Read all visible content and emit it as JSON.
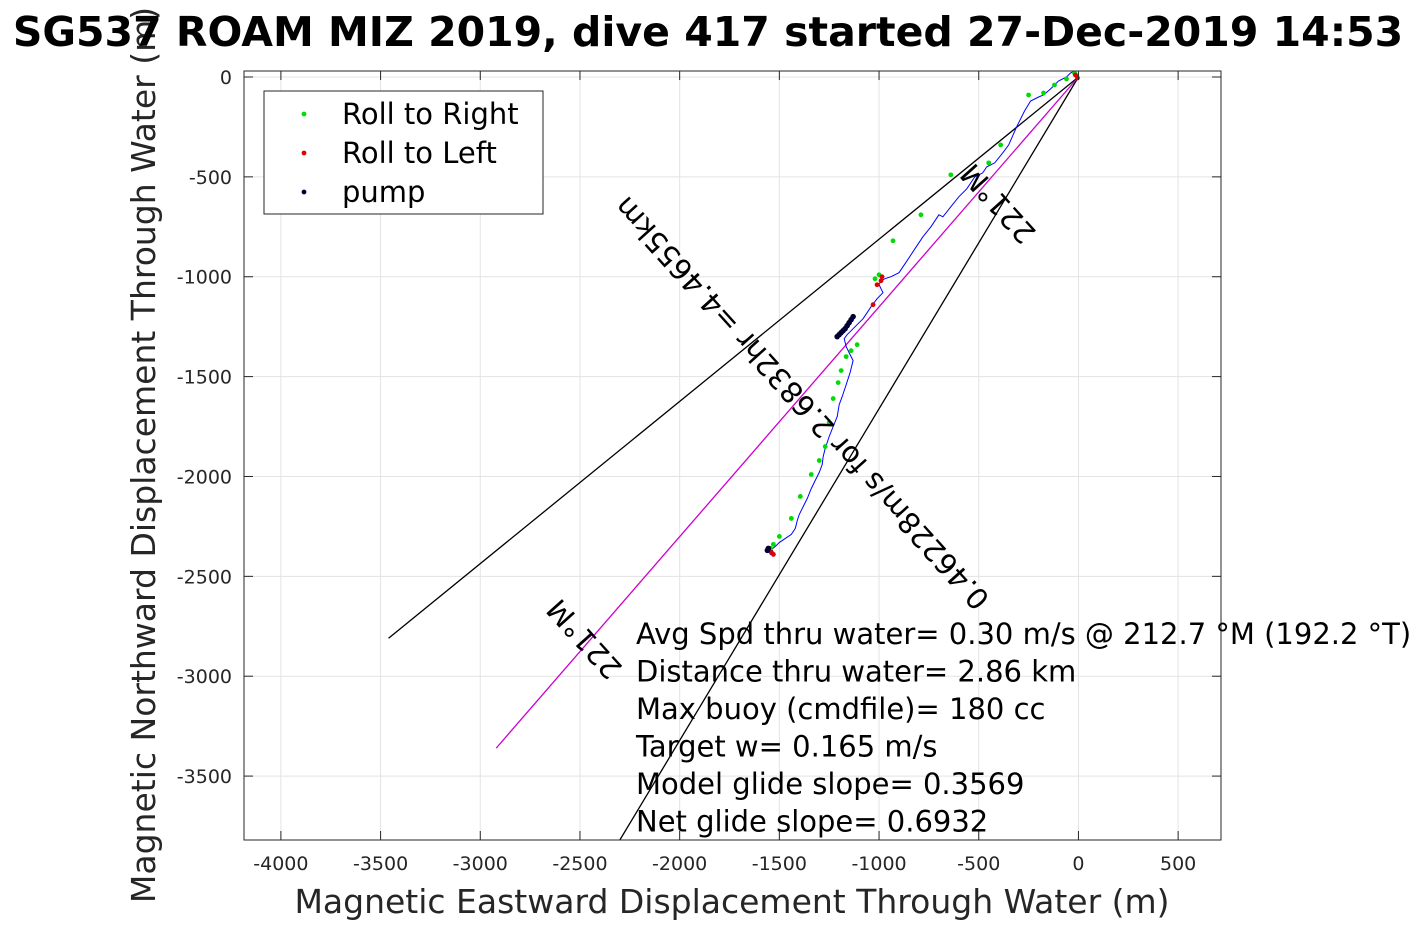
{
  "chart_data": {
    "type": "line",
    "title": "SG537 ROAM MIZ 2019, dive 417 started 27-Dec-2019 14:53",
    "xlabel": "Magnetic Eastward Displacement Through Water (m)",
    "ylabel": "Magnetic Northward Displacement Through Water (m)",
    "xlim": [
      -4185,
      715
    ],
    "ylim": [
      -3820,
      30
    ],
    "xticks": [
      -4000,
      -3500,
      -3000,
      -2500,
      -2000,
      -1500,
      -1000,
      -500,
      0,
      500
    ],
    "yticks": [
      0,
      -500,
      -1000,
      -1500,
      -2000,
      -2500,
      -3000,
      -3500
    ],
    "grid": true,
    "legend": {
      "position": "top-left",
      "entries": [
        {
          "label": "Roll to Right",
          "color": "#00dd00"
        },
        {
          "label": "Roll to Left",
          "color": "#dd0000"
        },
        {
          "label": "pump",
          "color": "#000033"
        }
      ]
    },
    "track": {
      "name": "track",
      "color": "#0000ff",
      "x": [
        0,
        -10,
        -20,
        -40,
        -60,
        -100,
        -140,
        -175,
        -200,
        -240,
        -270,
        -310,
        -350,
        -380,
        -420,
        -460,
        -480,
        -520,
        -560,
        -600,
        -640,
        -680,
        -700,
        -740,
        -780,
        -820,
        -860,
        -900,
        -940,
        -970,
        -990,
        -1000,
        -990,
        -980,
        -1010,
        -1040,
        -1060,
        -1080,
        -1100,
        -1120,
        -1140,
        -1160,
        -1175,
        -1165,
        -1150,
        -1130,
        -1145,
        -1165,
        -1185,
        -1200,
        -1210,
        -1230,
        -1250,
        -1270,
        -1280,
        -1285,
        -1300,
        -1320,
        -1340,
        -1360,
        -1380,
        -1400,
        -1410,
        -1420,
        -1440,
        -1470,
        -1500,
        -1520,
        -1540,
        -1550,
        -1545,
        -1535,
        -1545,
        -1555
      ],
      "y": [
        0,
        20,
        30,
        20,
        0,
        -20,
        -60,
        -90,
        -100,
        -120,
        -170,
        -250,
        -340,
        -380,
        -430,
        -450,
        -480,
        -500,
        -560,
        -600,
        -650,
        -700,
        -690,
        -750,
        -800,
        -860,
        -920,
        -980,
        -1000,
        -1010,
        -1020,
        -1040,
        -1060,
        -1080,
        -1110,
        -1150,
        -1180,
        -1210,
        -1230,
        -1250,
        -1270,
        -1290,
        -1310,
        -1350,
        -1380,
        -1420,
        -1480,
        -1540,
        -1600,
        -1640,
        -1700,
        -1750,
        -1800,
        -1860,
        -1900,
        -1940,
        -1980,
        -2020,
        -2060,
        -2110,
        -2150,
        -2190,
        -2220,
        -2260,
        -2290,
        -2310,
        -2330,
        -2350,
        -2365,
        -2380,
        -2390,
        -2370,
        -2360,
        -2370
      ]
    },
    "roll_right": {
      "x": [
        -20,
        -60,
        -120,
        -175,
        -250,
        -390,
        -450,
        -640,
        -790,
        -930,
        -1000,
        -1020,
        -1110,
        -1140,
        -1165,
        -1190,
        -1205,
        -1230,
        -1250,
        -1270,
        -1300,
        -1340,
        -1395,
        -1440,
        -1500,
        -1530,
        -1545,
        -1555
      ],
      "y": [
        20,
        -10,
        -40,
        -80,
        -90,
        -340,
        -430,
        -490,
        -690,
        -820,
        -990,
        -1010,
        -1340,
        -1370,
        -1400,
        -1470,
        -1530,
        -1610,
        -1730,
        -1850,
        -1920,
        -1990,
        -2100,
        -2210,
        -2300,
        -2340,
        -2360,
        -2370
      ]
    },
    "roll_left": {
      "x": [
        -5,
        -15,
        -985,
        -990,
        -1010,
        -1030,
        -1540,
        -1530
      ],
      "y": [
        -5,
        10,
        -1000,
        -1020,
        -1040,
        -1140,
        -2380,
        -2390
      ]
    },
    "pump": {
      "x": [
        -1130,
        -1140,
        -1150,
        -1160,
        -1170,
        -1180,
        -1190,
        -1200,
        -1210,
        -1555,
        -1560
      ],
      "y": [
        -1200,
        -1215,
        -1230,
        -1245,
        -1260,
        -1270,
        -1280,
        -1290,
        -1300,
        -2360,
        -2370
      ]
    },
    "reference_lines": [
      {
        "name": "cone-left",
        "color": "#000000",
        "x": [
          0,
          -3460
        ],
        "y": [
          0,
          -2810
        ]
      },
      {
        "name": "cone-right",
        "color": "#000000",
        "x": [
          0,
          -2300
        ],
        "y": [
          0,
          -3820
        ]
      },
      {
        "name": "heading-line",
        "color": "#cc00cc",
        "x": [
          0,
          -2920
        ],
        "y": [
          0,
          -3360
        ]
      }
    ],
    "rotated_labels": [
      {
        "text": "221°M",
        "x": -365,
        "y": -600,
        "angle": 228
      },
      {
        "text": "0.46228m/s for 2.6832hr =4.4655km",
        "x": -1350,
        "y": -1600,
        "angle": 228
      },
      {
        "text": "221°M",
        "x": -2440,
        "y": -2780,
        "angle": 228
      }
    ],
    "annotations": [
      "Avg Spd thru water=  0.30 m/s @ 212.7 °M (192.2 °T)",
      "Distance thru water=  2.86 km",
      "Max buoy (cmdfile)= 180 cc",
      "Target w= 0.165 m/s",
      "Model glide slope= 0.3569",
      "Net glide slope= 0.6932"
    ]
  }
}
